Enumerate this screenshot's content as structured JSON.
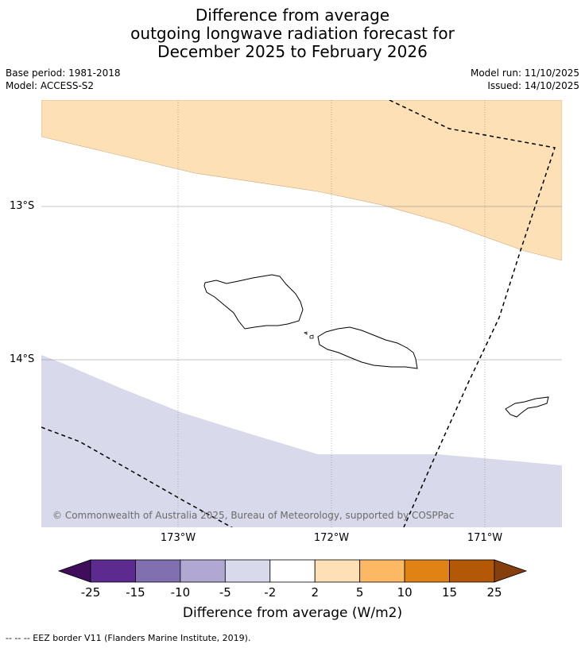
{
  "title": {
    "line1": "Difference from average",
    "line2": "outgoing longwave radiation forecast for",
    "line3": "December 2025 to February 2026"
  },
  "meta": {
    "base_period": "Base period: 1981-2018",
    "model": "Model: ACCESS-S2",
    "model_run": "Model run: 11/10/2025",
    "issued": "Issued: 14/10/2025"
  },
  "map": {
    "lat_labels": [
      "13°S",
      "14°S"
    ],
    "lon_labels": [
      "173°W",
      "172°W",
      "171°W"
    ],
    "copyright": "© Commonwealth of Australia 2025, Bureau of Meteorology, supported by COSPPac",
    "colors": {
      "positive_2_5": "#fde0b6",
      "negative_2_5": "#d8d9ea",
      "coast": "#000000",
      "grid": "#7f7f7f"
    }
  },
  "colorbar": {
    "label": "Difference from average (W/m2)",
    "ticks": [
      "-25",
      "-15",
      "-10",
      "-5",
      "-2",
      "2",
      "5",
      "10",
      "15",
      "25"
    ],
    "colors": [
      "#3f0d5c",
      "#5d2b8f",
      "#8170b0",
      "#b0a8d2",
      "#d8d9ea",
      "#ffffff",
      "#fde0b6",
      "#fdb863",
      "#e08214",
      "#b35806",
      "#843f0c"
    ]
  },
  "footnote": "-- -- -- EEZ border V11 (Flanders Marine Institute, 2019)."
}
